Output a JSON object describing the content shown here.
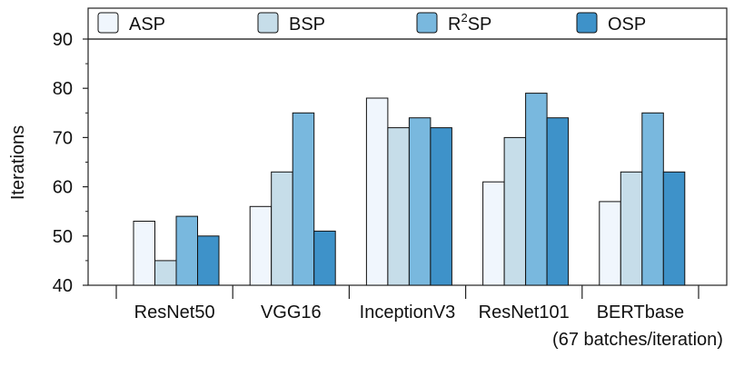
{
  "chart_data": {
    "type": "bar",
    "ylabel": "Iterations",
    "ylim": [
      40,
      90
    ],
    "yticks": [
      40,
      50,
      60,
      70,
      80,
      90
    ],
    "grid": false,
    "legend_position": "top",
    "categories": [
      {
        "lines": [
          "ResNet50"
        ]
      },
      {
        "lines": [
          "VGG16"
        ]
      },
      {
        "lines": [
          "InceptionV3"
        ]
      },
      {
        "lines": [
          "ResNet101"
        ]
      },
      {
        "lines": [
          "BERTbase",
          "(67 batches/iteration)"
        ]
      }
    ],
    "series": [
      {
        "name": "ASP",
        "base": "R",
        "sup": "",
        "tail": "",
        "color": "#f0f6fd",
        "values": [
          53,
          56,
          78,
          61,
          57
        ]
      },
      {
        "name": "BSP",
        "base": "BSP",
        "sup": "",
        "tail": "",
        "color": "#c6dde9",
        "values": [
          45,
          63,
          72,
          70,
          63
        ]
      },
      {
        "name": "R2SP",
        "base": "R",
        "sup": "2",
        "tail": "SP",
        "color": "#79b8de",
        "values": [
          54,
          75,
          74,
          79,
          75
        ]
      },
      {
        "name": "OSP",
        "base": "OSP",
        "sup": "",
        "tail": "",
        "color": "#3e92c9",
        "values": [
          50,
          51,
          72,
          74,
          63
        ]
      }
    ]
  }
}
